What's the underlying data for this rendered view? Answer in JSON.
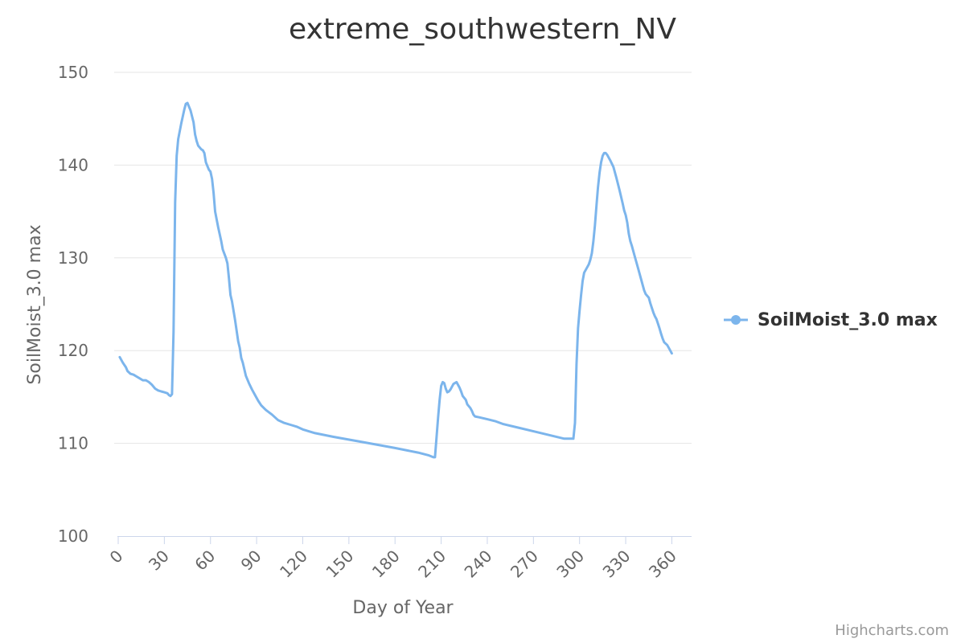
{
  "chart_data": {
    "type": "line",
    "title": "extreme_southwestern_NV",
    "xlabel": "Day of Year",
    "ylabel": "SoilMoist_3.0 max",
    "xlim": [
      0,
      365
    ],
    "ylim": [
      100,
      150
    ],
    "x_ticks": [
      0,
      30,
      60,
      90,
      120,
      150,
      180,
      210,
      240,
      270,
      300,
      330,
      360
    ],
    "y_ticks": [
      100,
      110,
      120,
      130,
      140,
      150
    ],
    "grid": true,
    "legend_position": "right",
    "series": [
      {
        "name": "SoilMoist_3.0 max",
        "color": "#7cb5ec",
        "points": [
          [
            1,
            119.3
          ],
          [
            3,
            118.7
          ],
          [
            5,
            118.2
          ],
          [
            6,
            117.8
          ],
          [
            8,
            117.5
          ],
          [
            10,
            117.4
          ],
          [
            12,
            117.2
          ],
          [
            14,
            117.0
          ],
          [
            16,
            116.8
          ],
          [
            18,
            116.8
          ],
          [
            20,
            116.6
          ],
          [
            22,
            116.3
          ],
          [
            24,
            115.9
          ],
          [
            26,
            115.7
          ],
          [
            28,
            115.6
          ],
          [
            30,
            115.5
          ],
          [
            32,
            115.4
          ],
          [
            33,
            115.2
          ],
          [
            34,
            115.1
          ],
          [
            35,
            115.3
          ],
          [
            36,
            122.0
          ],
          [
            37,
            136.0
          ],
          [
            38,
            141.0
          ],
          [
            39,
            142.8
          ],
          [
            41,
            144.5
          ],
          [
            43,
            146.0
          ],
          [
            44,
            146.6
          ],
          [
            45,
            146.7
          ],
          [
            47,
            145.9
          ],
          [
            49,
            144.6
          ],
          [
            50,
            143.3
          ],
          [
            51,
            142.6
          ],
          [
            52,
            142.1
          ],
          [
            54,
            141.7
          ],
          [
            55,
            141.6
          ],
          [
            56,
            141.3
          ],
          [
            57,
            140.3
          ],
          [
            59,
            139.5
          ],
          [
            60,
            139.3
          ],
          [
            61,
            138.5
          ],
          [
            62,
            137.0
          ],
          [
            63,
            135.0
          ],
          [
            65,
            133.3
          ],
          [
            67,
            131.8
          ],
          [
            68,
            130.9
          ],
          [
            70,
            130.0
          ],
          [
            71,
            129.4
          ],
          [
            72,
            127.8
          ],
          [
            73,
            126.0
          ],
          [
            74,
            125.3
          ],
          [
            76,
            123.3
          ],
          [
            78,
            121.0
          ],
          [
            79,
            120.3
          ],
          [
            80,
            119.2
          ],
          [
            81,
            118.7
          ],
          [
            83,
            117.3
          ],
          [
            85,
            116.5
          ],
          [
            87,
            115.8
          ],
          [
            89,
            115.2
          ],
          [
            91,
            114.6
          ],
          [
            93,
            114.1
          ],
          [
            96,
            113.6
          ],
          [
            100,
            113.1
          ],
          [
            104,
            112.5
          ],
          [
            108,
            112.2
          ],
          [
            112,
            112.0
          ],
          [
            116,
            111.8
          ],
          [
            120,
            111.5
          ],
          [
            128,
            111.1
          ],
          [
            140,
            110.7
          ],
          [
            160,
            110.1
          ],
          [
            180,
            109.5
          ],
          [
            195,
            109.0
          ],
          [
            202,
            108.7
          ],
          [
            205,
            108.5
          ],
          [
            206,
            108.5
          ],
          [
            207,
            110.7
          ],
          [
            208,
            112.8
          ],
          [
            209,
            114.7
          ],
          [
            210,
            116.2
          ],
          [
            211,
            116.6
          ],
          [
            212,
            116.5
          ],
          [
            213,
            115.9
          ],
          [
            214,
            115.5
          ],
          [
            215,
            115.6
          ],
          [
            216,
            115.8
          ],
          [
            217,
            116.1
          ],
          [
            218,
            116.4
          ],
          [
            220,
            116.6
          ],
          [
            221,
            116.3
          ],
          [
            222,
            116.0
          ],
          [
            223,
            115.6
          ],
          [
            224,
            115.1
          ],
          [
            226,
            114.7
          ],
          [
            227,
            114.2
          ],
          [
            229,
            113.8
          ],
          [
            230,
            113.5
          ],
          [
            231,
            113.1
          ],
          [
            232,
            112.9
          ],
          [
            235,
            112.8
          ],
          [
            240,
            112.6
          ],
          [
            245,
            112.4
          ],
          [
            250,
            112.1
          ],
          [
            260,
            111.7
          ],
          [
            270,
            111.3
          ],
          [
            280,
            110.9
          ],
          [
            290,
            110.5
          ],
          [
            296,
            110.5
          ],
          [
            297,
            112.2
          ],
          [
            298,
            118.5
          ],
          [
            299,
            122.4
          ],
          [
            300,
            124.3
          ],
          [
            301,
            126.0
          ],
          [
            302,
            127.5
          ],
          [
            303,
            128.4
          ],
          [
            305,
            129.0
          ],
          [
            306,
            129.3
          ],
          [
            307,
            129.8
          ],
          [
            308,
            130.5
          ],
          [
            309,
            131.8
          ],
          [
            310,
            133.5
          ],
          [
            311,
            135.6
          ],
          [
            312,
            137.6
          ],
          [
            313,
            139.2
          ],
          [
            314,
            140.3
          ],
          [
            315,
            141.0
          ],
          [
            316,
            141.3
          ],
          [
            317,
            141.3
          ],
          [
            318,
            141.1
          ],
          [
            319,
            140.8
          ],
          [
            320,
            140.5
          ],
          [
            322,
            139.8
          ],
          [
            324,
            138.6
          ],
          [
            326,
            137.3
          ],
          [
            328,
            135.9
          ],
          [
            329,
            135.1
          ],
          [
            330,
            134.6
          ],
          [
            331,
            133.8
          ],
          [
            332,
            132.6
          ],
          [
            333,
            131.8
          ],
          [
            334,
            131.3
          ],
          [
            336,
            130.1
          ],
          [
            338,
            128.9
          ],
          [
            340,
            127.7
          ],
          [
            341,
            127.1
          ],
          [
            342,
            126.5
          ],
          [
            343,
            126.1
          ],
          [
            345,
            125.7
          ],
          [
            346,
            125.1
          ],
          [
            347,
            124.6
          ],
          [
            348,
            124.1
          ],
          [
            349,
            123.7
          ],
          [
            350,
            123.4
          ],
          [
            351,
            122.9
          ],
          [
            352,
            122.4
          ],
          [
            353,
            121.8
          ],
          [
            354,
            121.3
          ],
          [
            355,
            120.9
          ],
          [
            357,
            120.6
          ],
          [
            358,
            120.3
          ],
          [
            359,
            120.0
          ],
          [
            360,
            119.7
          ]
        ]
      }
    ]
  },
  "credits": "Highcharts.com"
}
